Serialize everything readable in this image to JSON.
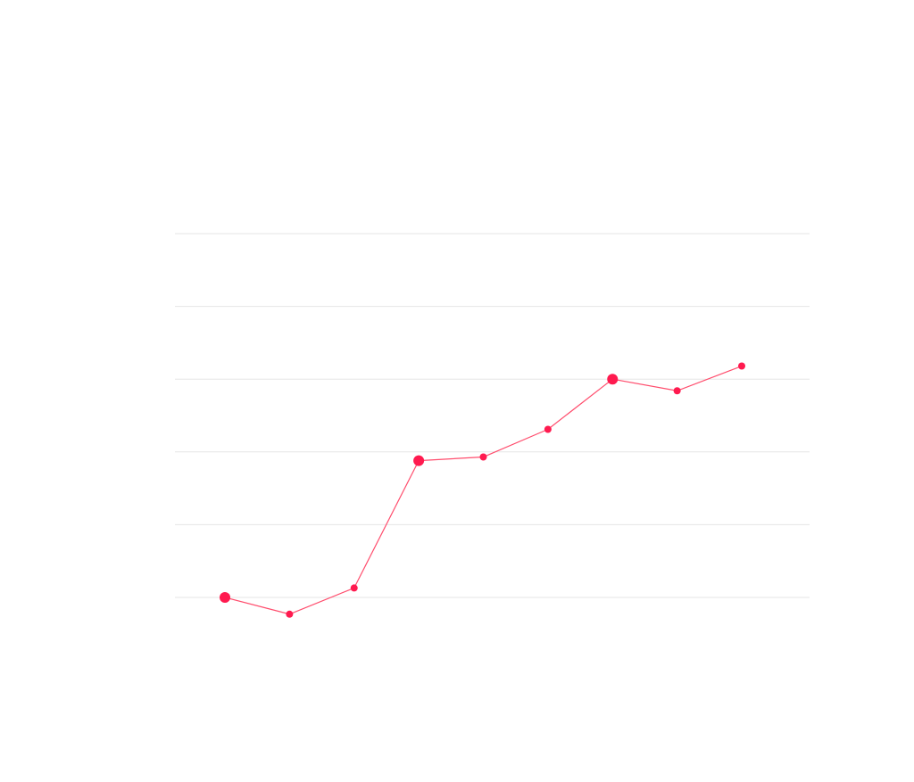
{
  "chart_data": {
    "type": "line",
    "title": "",
    "xlabel": "",
    "ylabel": "",
    "x": [
      1,
      2,
      3,
      4,
      5,
      6,
      7,
      8,
      9
    ],
    "series": [
      {
        "values": [
          0,
          -0.23,
          0.13,
          1.88,
          1.93,
          2.31,
          3.0,
          2.84,
          3.18
        ],
        "highlighted_points": [
          0,
          3,
          6
        ]
      }
    ],
    "xlim": [
      0.2,
      10.4
    ],
    "ylim": [
      -1,
      5
    ],
    "yticks": [
      0,
      1,
      2,
      3,
      4,
      5
    ],
    "grid": true,
    "legend": "none",
    "colors": {
      "line": "#ff4d6d",
      "marker": "#ff1a4f",
      "grid": "#e6e6e6",
      "background": "#ffffff"
    }
  }
}
